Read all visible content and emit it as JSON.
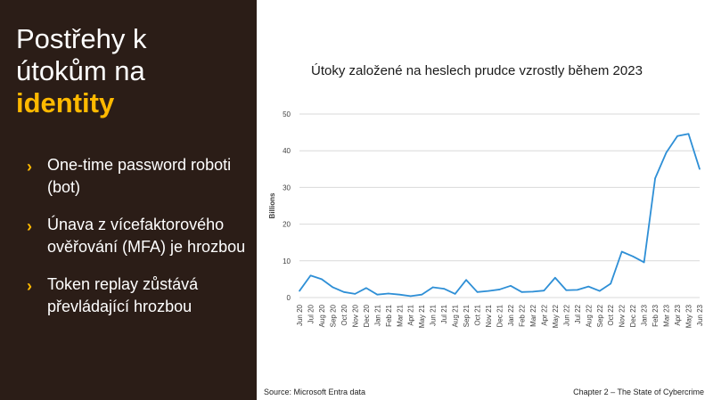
{
  "slide": {
    "title_line1": "Postřehy k",
    "title_line2": "útokům na",
    "title_accent": "identity",
    "bullets": [
      "One-time password roboti (bot)",
      "Únava z vícefaktorového ověřování (MFA) je hrozbou",
      "Token replay zůstává převládající hrozbou"
    ],
    "footer_source": "Source: Microsoft Entra data",
    "footer_chapter": "Chapter 2 – The State of Cybercrime"
  },
  "colors": {
    "panel": "#2b1d17",
    "accent": "#ffb900",
    "line": "#2e8fd6"
  },
  "chart_data": {
    "type": "line",
    "title": "Útoky založené na heslech prudce vzrostly během 2023",
    "ylabel": "Billions",
    "xlabel": "",
    "ylim": [
      0,
      50
    ],
    "yticks": [
      0,
      10,
      20,
      30,
      40,
      50
    ],
    "grid": true,
    "categories": [
      "Jun 20",
      "Jul 20",
      "Aug 20",
      "Sep 20",
      "Oct 20",
      "Nov 20",
      "Dec 20",
      "Jan 21",
      "Feb 21",
      "Mar 21",
      "Apr 21",
      "May 21",
      "Jun 21",
      "Jul 21",
      "Aug 21",
      "Sep 21",
      "Oct 21",
      "Nov 21",
      "Dec 21",
      "Jan 22",
      "Feb 22",
      "Mar 22",
      "Apr 22",
      "May 22",
      "Jun 22",
      "Jul 22",
      "Aug 22",
      "Sep 22",
      "Oct 22",
      "Nov 22",
      "Dec 22",
      "Jan 23",
      "Feb 23",
      "Mar 23",
      "Apr 23",
      "May 23",
      "Jun 23"
    ],
    "series": [
      {
        "values": [
          1.8,
          6,
          5,
          2.8,
          1.5,
          1,
          2.6,
          0.8,
          1.1,
          0.8,
          0.4,
          0.8,
          2.8,
          2.4,
          1,
          4.8,
          1.5,
          1.8,
          2.2,
          3.2,
          1.5,
          1.6,
          1.9,
          5.4,
          2,
          2.1,
          3,
          1.8,
          3.8,
          12.5,
          11.2,
          9.6,
          32.5,
          39.5,
          44,
          44.6,
          35
        ]
      }
    ]
  }
}
